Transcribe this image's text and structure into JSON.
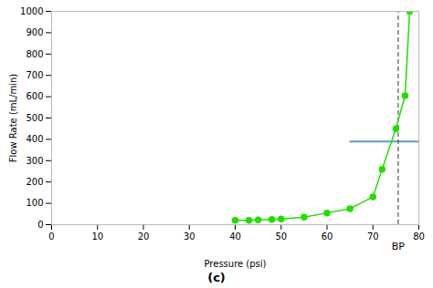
{
  "chart_data": {
    "type": "line",
    "xlabel": "Pressure (psi)",
    "ylabel": "Flow Rate (mL/min)",
    "subtitle": "(c)",
    "x": [
      40,
      43,
      45,
      48,
      50,
      55,
      60,
      65,
      70,
      72,
      75,
      77,
      78
    ],
    "values": [
      20,
      20,
      22,
      25,
      27,
      35,
      55,
      75,
      130,
      260,
      450,
      605,
      1000
    ],
    "color": "#22DD00",
    "marker": "circle",
    "xlim": [
      0,
      80
    ],
    "ylim": [
      0,
      1000
    ],
    "xticks": [
      0,
      10,
      20,
      30,
      40,
      50,
      60,
      70,
      80
    ],
    "yticks": [
      0,
      100,
      200,
      300,
      400,
      500,
      600,
      700,
      800,
      900,
      1000
    ],
    "grid": false,
    "annotations": [
      {
        "type": "hline",
        "y": 390,
        "x_range": [
          65,
          80
        ],
        "color": "#5B9BD5"
      },
      {
        "type": "vline",
        "x": 75.5,
        "y_range": [
          0,
          1000
        ],
        "color": "#555555",
        "line_style": "dashed",
        "label": "BP"
      }
    ]
  }
}
